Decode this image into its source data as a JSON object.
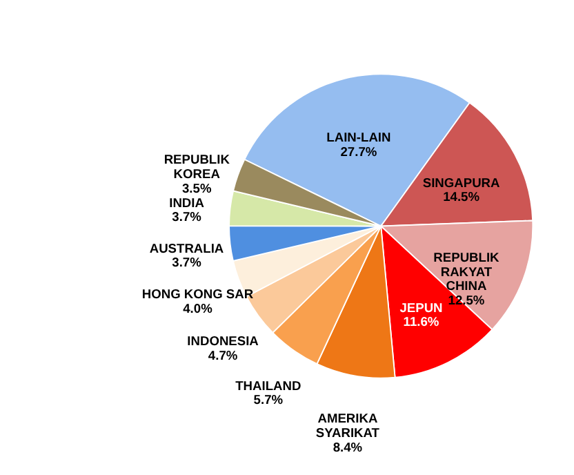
{
  "chart_data": {
    "type": "pie",
    "categories": [
      "LAIN-LAIN",
      "SINGAPURA",
      "REPUBLIK RAKYAT CHINA",
      "JEPUN",
      "AMERIKA SYARIKAT",
      "THAILAND",
      "INDONESIA",
      "HONG KONG SAR",
      "AUSTRALIA",
      "INDIA",
      "REPUBLIK KOREA"
    ],
    "values": [
      27.7,
      14.5,
      12.5,
      11.6,
      8.4,
      5.7,
      4.7,
      4.0,
      3.7,
      3.7,
      3.5
    ],
    "value_labels": [
      "27.7%",
      "14.5%",
      "12.5%",
      "11.6%",
      "8.4%",
      "5.7%",
      "4.7%",
      "4.0%",
      "3.7%",
      "3.7%",
      "3.5%"
    ],
    "colors": [
      "#95bdf0",
      "#cd5654",
      "#e6a3a0",
      "#ff0000",
      "#ee7716",
      "#f9a04e",
      "#fbc99a",
      "#fdefdc",
      "#4f8fe0",
      "#d6e8a8",
      "#9a8a5e"
    ],
    "legend": false
  }
}
